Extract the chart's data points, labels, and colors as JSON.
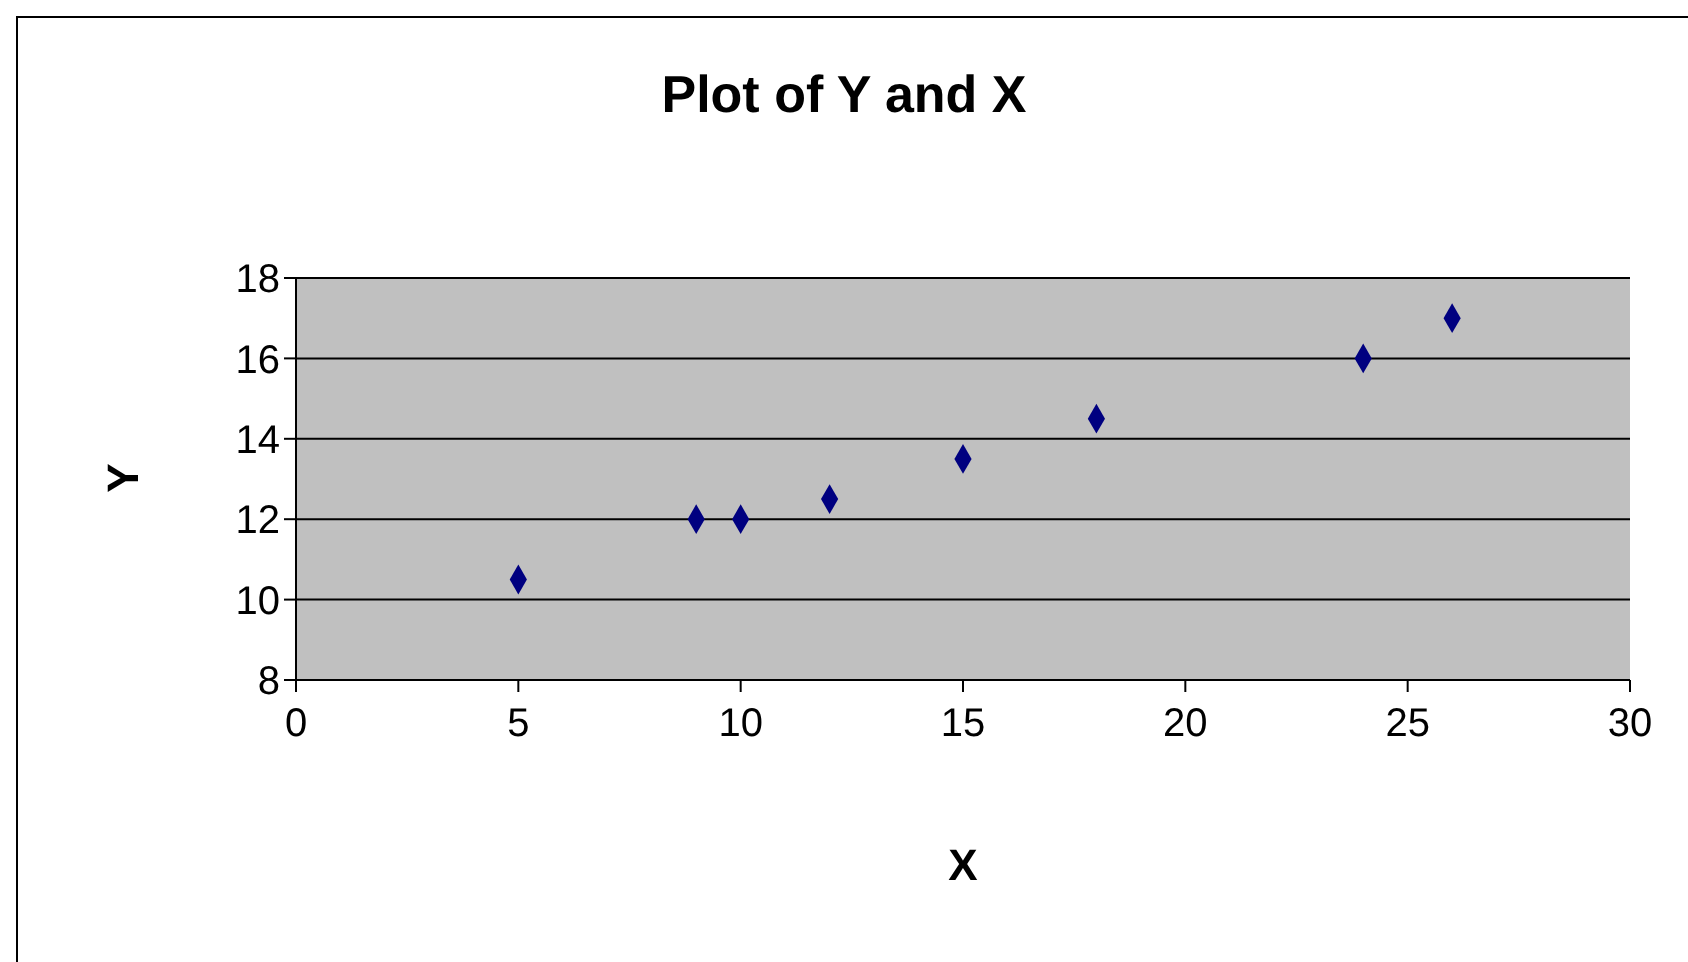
{
  "chart_data": {
    "type": "scatter",
    "title": "Plot of Y and X",
    "xlabel": "X",
    "ylabel": "Y",
    "x": [
      5,
      9,
      10,
      12,
      15,
      18,
      24,
      26
    ],
    "series": [
      {
        "color": "#000080",
        "values": [
          10.5,
          12,
          12,
          12.5,
          13.5,
          14.5,
          16,
          17
        ]
      }
    ],
    "xlim": [
      0,
      30
    ],
    "xticks": [
      0,
      5,
      10,
      15,
      20,
      25,
      30
    ],
    "ylim": [
      8,
      18
    ],
    "yticks": [
      8,
      10,
      12,
      14,
      16,
      18
    ],
    "grid": "y",
    "marker": "diamond"
  }
}
